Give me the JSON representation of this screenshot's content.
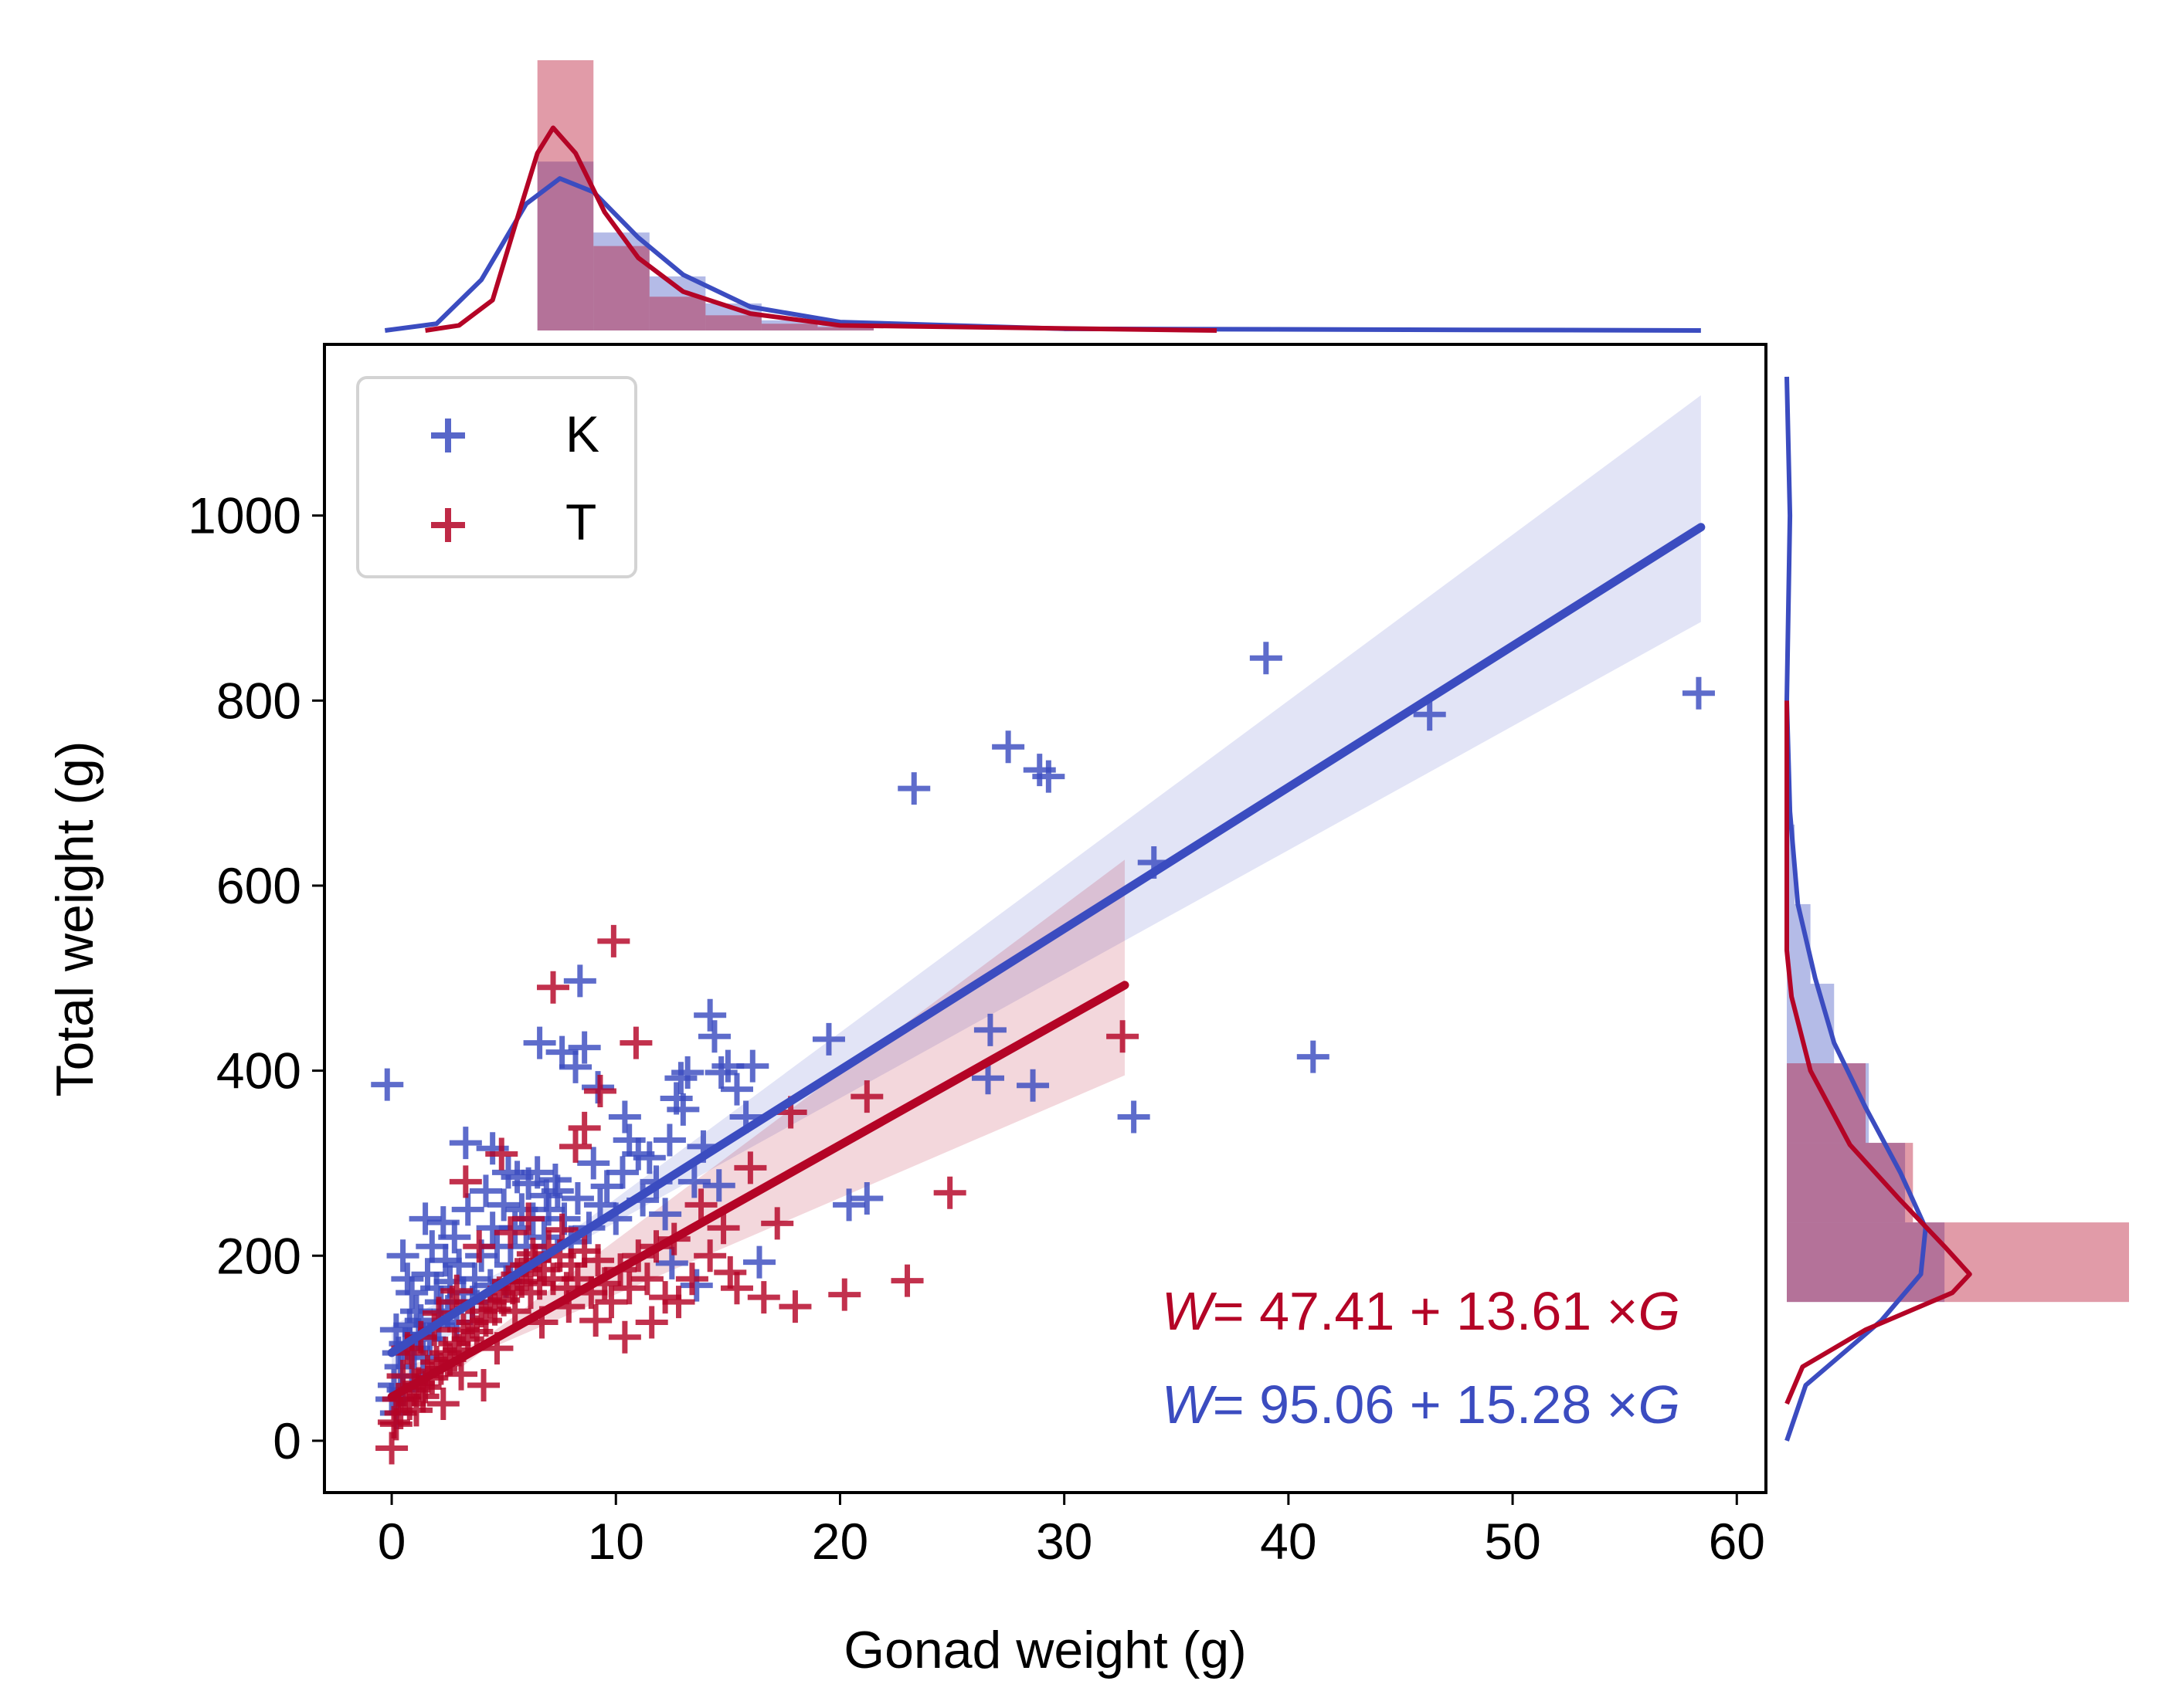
{
  "chart_data": {
    "type": "scatter",
    "xlabel": "Gonad weight (g)",
    "ylabel": "Total weight (g)",
    "xlim": [
      -3,
      61.3
    ],
    "ylim": [
      -56,
      1185
    ],
    "x_ticks": [
      0,
      10,
      20,
      30,
      40,
      50,
      60
    ],
    "y_ticks": [
      0,
      200,
      400,
      600,
      800,
      1000
    ],
    "grid": false,
    "legend_position": "top-left",
    "colors": {
      "K": "#3b4cc0",
      "T": "#b40426"
    },
    "series": [
      {
        "name": "K",
        "marker": "plus",
        "regression": {
          "intercept": 95.06,
          "slope": 15.28,
          "x_range": [
            0,
            58.4
          ],
          "ci_at_end": [
            885,
            1130
          ],
          "equation_text": "= 95.06 + 15.28 ×",
          "var_w": "W",
          "var_g": "G"
        },
        "points": [
          [
            -0.2,
            385
          ],
          [
            1.5,
            240
          ],
          [
            2.3,
            236
          ],
          [
            3.3,
            322
          ],
          [
            4.5,
            316
          ],
          [
            5.2,
            290
          ],
          [
            5.6,
            285
          ],
          [
            6.1,
            278
          ],
          [
            6.6,
            430
          ],
          [
            6.9,
            265
          ],
          [
            7.4,
            270
          ],
          [
            7.6,
            420
          ],
          [
            8.4,
            497
          ],
          [
            8.6,
            425
          ],
          [
            8.2,
            404
          ],
          [
            9.2,
            382
          ],
          [
            9.0,
            300
          ],
          [
            10.4,
            350
          ],
          [
            10.6,
            325
          ],
          [
            11.0,
            310
          ],
          [
            11.5,
            306
          ],
          [
            12.4,
            325
          ],
          [
            12.7,
            370
          ],
          [
            12.9,
            392
          ],
          [
            13.2,
            398
          ],
          [
            13.0,
            358
          ],
          [
            13.9,
            318
          ],
          [
            14.2,
            460
          ],
          [
            14.4,
            437
          ],
          [
            14.7,
            398
          ],
          [
            15.0,
            405
          ],
          [
            15.4,
            380
          ],
          [
            16.1,
            405
          ],
          [
            16.4,
            193
          ],
          [
            15.8,
            350
          ],
          [
            19.5,
            434
          ],
          [
            20.4,
            255
          ],
          [
            21.2,
            262
          ],
          [
            23.3,
            705
          ],
          [
            26.7,
            444
          ],
          [
            26.6,
            392
          ],
          [
            27.5,
            750
          ],
          [
            28.6,
            384
          ],
          [
            28.9,
            725
          ],
          [
            29.3,
            718
          ],
          [
            33.1,
            350
          ],
          [
            34.0,
            625
          ],
          [
            39.0,
            846
          ],
          [
            41.1,
            415
          ],
          [
            46.3,
            785
          ],
          [
            58.3,
            808
          ],
          [
            0.5,
            200
          ],
          [
            0.7,
            175
          ],
          [
            0.9,
            160
          ],
          [
            1.1,
            140
          ],
          [
            1.3,
            130
          ],
          [
            1.6,
            180
          ],
          [
            1.8,
            210
          ],
          [
            2.0,
            165
          ],
          [
            2.2,
            150
          ],
          [
            2.4,
            195
          ],
          [
            2.6,
            172
          ],
          [
            2.8,
            220
          ],
          [
            3.0,
            190
          ],
          [
            3.2,
            160
          ],
          [
            3.4,
            250
          ],
          [
            3.7,
            175
          ],
          [
            4.0,
            200
          ],
          [
            4.2,
            270
          ],
          [
            4.5,
            230
          ],
          [
            4.7,
            210
          ],
          [
            5.0,
            255
          ],
          [
            5.3,
            190
          ],
          [
            5.5,
            230
          ],
          [
            5.8,
            250
          ],
          [
            6.0,
            210
          ],
          [
            6.3,
            240
          ],
          [
            6.5,
            290
          ],
          [
            6.8,
            220
          ],
          [
            7.0,
            250
          ],
          [
            7.3,
            282
          ],
          [
            7.7,
            240
          ],
          [
            8.0,
            215
          ],
          [
            8.3,
            262
          ],
          [
            8.8,
            230
          ],
          [
            9.3,
            255
          ],
          [
            9.6,
            275
          ],
          [
            10.0,
            240
          ],
          [
            10.3,
            290
          ],
          [
            11.2,
            260
          ],
          [
            11.8,
            280
          ],
          [
            12.2,
            245
          ],
          [
            13.5,
            280
          ],
          [
            14.6,
            276
          ],
          [
            0.2,
            120
          ],
          [
            0.3,
            95
          ],
          [
            0.1,
            60
          ],
          [
            0.4,
            80
          ],
          [
            0.6,
            105
          ],
          [
            0.8,
            125
          ],
          [
            1.0,
            100
          ],
          [
            1.2,
            115
          ],
          [
            1.4,
            90
          ],
          [
            0.0,
            45
          ],
          [
            0.2,
            30
          ],
          [
            0.5,
            55
          ],
          [
            0.9,
            70
          ],
          [
            1.7,
            110
          ],
          [
            2.1,
            125
          ],
          [
            2.5,
            140
          ],
          [
            2.9,
            128
          ],
          [
            3.6,
            150
          ],
          [
            4.4,
            168
          ],
          [
            5.1,
            172
          ],
          [
            12.5,
            192
          ],
          [
            13.6,
            168
          ]
        ]
      },
      {
        "name": "T",
        "marker": "plus",
        "regression": {
          "intercept": 47.41,
          "slope": 13.61,
          "x_range": [
            0,
            32.7
          ],
          "ci_at_end": [
            395,
            628
          ],
          "equation_text": "= 47.41 + 13.61 ×",
          "var_w": "W",
          "var_g": "G"
        },
        "points": [
          [
            0.0,
            -8
          ],
          [
            0.2,
            18
          ],
          [
            0.4,
            30
          ],
          [
            0.6,
            45
          ],
          [
            0.8,
            40
          ],
          [
            1.0,
            55
          ],
          [
            1.2,
            62
          ],
          [
            1.4,
            48
          ],
          [
            1.6,
            75
          ],
          [
            1.8,
            68
          ],
          [
            2.0,
            85
          ],
          [
            2.2,
            78
          ],
          [
            2.4,
            95
          ],
          [
            2.6,
            88
          ],
          [
            2.8,
            105
          ],
          [
            3.0,
            98
          ],
          [
            3.2,
            120
          ],
          [
            3.4,
            110
          ],
          [
            3.6,
            128
          ],
          [
            3.8,
            118
          ],
          [
            4.0,
            140
          ],
          [
            4.2,
            130
          ],
          [
            4.4,
            150
          ],
          [
            4.6,
            142
          ],
          [
            4.8,
            160
          ],
          [
            5.0,
            152
          ],
          [
            5.2,
            172
          ],
          [
            5.4,
            165
          ],
          [
            5.6,
            180
          ],
          [
            5.8,
            172
          ],
          [
            6.0,
            190
          ],
          [
            6.2,
            160
          ],
          [
            6.4,
            195
          ],
          [
            6.6,
            170
          ],
          [
            6.8,
            185
          ],
          [
            7.0,
            210
          ],
          [
            7.2,
            175
          ],
          [
            7.5,
            200
          ],
          [
            7.8,
            165
          ],
          [
            8.0,
            190
          ],
          [
            8.3,
            175
          ],
          [
            8.6,
            205
          ],
          [
            8.9,
            160
          ],
          [
            9.2,
            195
          ],
          [
            9.5,
            170
          ],
          [
            9.8,
            150
          ],
          [
            10.2,
            185
          ],
          [
            10.6,
            165
          ],
          [
            11.0,
            200
          ],
          [
            11.4,
            175
          ],
          [
            11.8,
            210
          ],
          [
            12.2,
            155
          ],
          [
            12.8,
            150
          ],
          [
            13.4,
            175
          ],
          [
            14.2,
            200
          ],
          [
            14.8,
            230
          ],
          [
            15.4,
            165
          ],
          [
            16.0,
            295
          ],
          [
            16.6,
            155
          ],
          [
            17.2,
            235
          ],
          [
            17.8,
            355
          ],
          [
            18.0,
            145
          ],
          [
            20.2,
            158
          ],
          [
            21.2,
            372
          ],
          [
            23.0,
            173
          ],
          [
            24.9,
            268
          ],
          [
            32.6,
            437
          ],
          [
            7.2,
            490
          ],
          [
            9.9,
            540
          ],
          [
            10.9,
            430
          ],
          [
            9.3,
            378
          ],
          [
            8.6,
            338
          ],
          [
            3.3,
            280
          ],
          [
            4.9,
            310
          ],
          [
            8.2,
            318
          ],
          [
            6.1,
            240
          ],
          [
            5.3,
            225
          ],
          [
            3.9,
            210
          ],
          [
            2.7,
            150
          ],
          [
            1.9,
            120
          ],
          [
            0.9,
            95
          ],
          [
            0.5,
            70
          ],
          [
            0.3,
            45
          ],
          [
            0.1,
            20
          ],
          [
            1.1,
            33
          ],
          [
            1.5,
            58
          ],
          [
            2.3,
            40
          ],
          [
            3.1,
            72
          ],
          [
            4.1,
            60
          ],
          [
            4.7,
            100
          ],
          [
            5.5,
            140
          ],
          [
            6.7,
            128
          ],
          [
            7.9,
            145
          ],
          [
            9.1,
            130
          ],
          [
            10.4,
            112
          ],
          [
            11.6,
            128
          ],
          [
            12.6,
            218
          ],
          [
            13.8,
            255
          ],
          [
            15.1,
            182
          ],
          [
            6.3,
            202
          ],
          [
            7.6,
            228
          ],
          [
            0.7,
            100
          ],
          [
            1.3,
            112
          ],
          [
            2.1,
            138
          ],
          [
            2.9,
            162
          ]
        ]
      }
    ],
    "marginal_x": {
      "bin_edges": [
        6.5,
        9.0,
        11.5,
        14.0,
        16.5,
        19.0,
        21.5
      ],
      "K_heights": [
        1.0,
        0.58,
        0.32,
        0.16,
        0.06,
        0.03
      ],
      "T_heights": [
        1.6,
        0.5,
        0.2,
        0.09,
        0.04,
        0.02
      ],
      "K_kde": [
        [
          -0.3,
          0.0
        ],
        [
          2,
          0.04
        ],
        [
          4,
          0.3
        ],
        [
          6,
          0.75
        ],
        [
          7.5,
          0.9
        ],
        [
          9,
          0.82
        ],
        [
          11,
          0.55
        ],
        [
          13,
          0.33
        ],
        [
          16,
          0.14
        ],
        [
          20,
          0.05
        ],
        [
          30,
          0.01
        ],
        [
          58.4,
          0.0
        ]
      ],
      "T_kde": [
        [
          1.5,
          0.0
        ],
        [
          3,
          0.03
        ],
        [
          4.5,
          0.18
        ],
        [
          5.5,
          0.62
        ],
        [
          6.5,
          1.05
        ],
        [
          7.2,
          1.2
        ],
        [
          8.2,
          1.05
        ],
        [
          9.5,
          0.7
        ],
        [
          11,
          0.43
        ],
        [
          13,
          0.23
        ],
        [
          16,
          0.1
        ],
        [
          20,
          0.03
        ],
        [
          36.8,
          0.0
        ]
      ]
    },
    "marginal_y": {
      "bin_edges": [
        150,
        236,
        322,
        408,
        494,
        580,
        666
      ],
      "K_widths": [
        1.0,
        0.75,
        0.52,
        0.3,
        0.15,
        0.05
      ],
      "T_widths": [
        2.17,
        0.8,
        0.5,
        0.0,
        0.0,
        0.0
      ],
      "K_kde": [
        [
          0,
          0.0
        ],
        [
          60,
          0.12
        ],
        [
          130,
          0.6
        ],
        [
          180,
          0.85
        ],
        [
          230,
          0.88
        ],
        [
          290,
          0.72
        ],
        [
          360,
          0.5
        ],
        [
          430,
          0.3
        ],
        [
          500,
          0.18
        ],
        [
          580,
          0.07
        ],
        [
          680,
          0.02
        ],
        [
          800,
          0.0
        ],
        [
          1000,
          0.02
        ],
        [
          1150,
          0.0
        ]
      ],
      "T_kde": [
        [
          40,
          0.0
        ],
        [
          80,
          0.1
        ],
        [
          120,
          0.5
        ],
        [
          160,
          1.05
        ],
        [
          180,
          1.16
        ],
        [
          210,
          1.0
        ],
        [
          260,
          0.72
        ],
        [
          320,
          0.4
        ],
        [
          400,
          0.15
        ],
        [
          480,
          0.03
        ],
        [
          530,
          0.0
        ],
        [
          800,
          0.0
        ]
      ]
    }
  }
}
